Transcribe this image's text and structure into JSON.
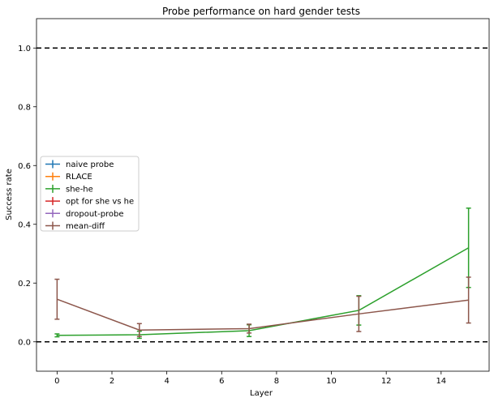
{
  "chart_data": {
    "type": "line",
    "title": "Probe performance on hard gender tests",
    "xlabel": "Layer",
    "ylabel": "Success rate",
    "xlim": [
      -0.75,
      15.75
    ],
    "ylim": [
      -0.1,
      1.1
    ],
    "xticks": [
      0,
      2,
      4,
      6,
      8,
      10,
      12,
      14
    ],
    "yticks": [
      0.0,
      0.2,
      0.4,
      0.6,
      0.8,
      1.0
    ],
    "xtick_labels": [
      "0",
      "2",
      "4",
      "6",
      "8",
      "10",
      "12",
      "14"
    ],
    "ytick_labels": [
      "0.0",
      "0.2",
      "0.4",
      "0.6",
      "0.8",
      "1.0"
    ],
    "hlines": [
      0.0,
      1.0
    ],
    "grid": false,
    "legend_position": "center-left",
    "series": [
      {
        "name": "naive probe",
        "color": "#1f77b4",
        "x": [],
        "y": [],
        "err": []
      },
      {
        "name": "RLACE",
        "color": "#ff7f0e",
        "x": [],
        "y": [],
        "err": []
      },
      {
        "name": "she-he",
        "color": "#2ca02c",
        "x": [
          0,
          3,
          7,
          11,
          15
        ],
        "y": [
          0.022,
          0.024,
          0.038,
          0.107,
          0.32
        ],
        "err": [
          0.005,
          0.012,
          0.02,
          0.05,
          0.135
        ]
      },
      {
        "name": "opt for she vs he",
        "color": "#d62728",
        "x": [],
        "y": [],
        "err": []
      },
      {
        "name": "dropout-probe",
        "color": "#9467bd",
        "x": [],
        "y": [],
        "err": []
      },
      {
        "name": "mean-diff",
        "color": "#8c564b",
        "x": [
          0,
          3,
          7,
          11,
          15
        ],
        "y": [
          0.145,
          0.04,
          0.045,
          0.095,
          0.142
        ],
        "err": [
          0.068,
          0.022,
          0.015,
          0.06,
          0.078
        ]
      }
    ]
  }
}
